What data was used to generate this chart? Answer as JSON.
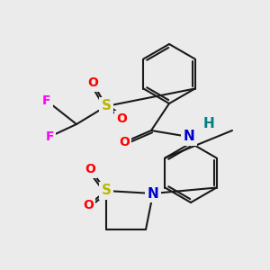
{
  "bg_color": "#ebebeb",
  "bond_color": "#1a1a1a",
  "colors": {
    "O": "#ff0000",
    "S": "#b8b800",
    "F": "#ff00ff",
    "N": "#0000cc",
    "H": "#008080",
    "C": "#1a1a1a"
  },
  "figsize": [
    3.0,
    3.0
  ],
  "dpi": 100
}
